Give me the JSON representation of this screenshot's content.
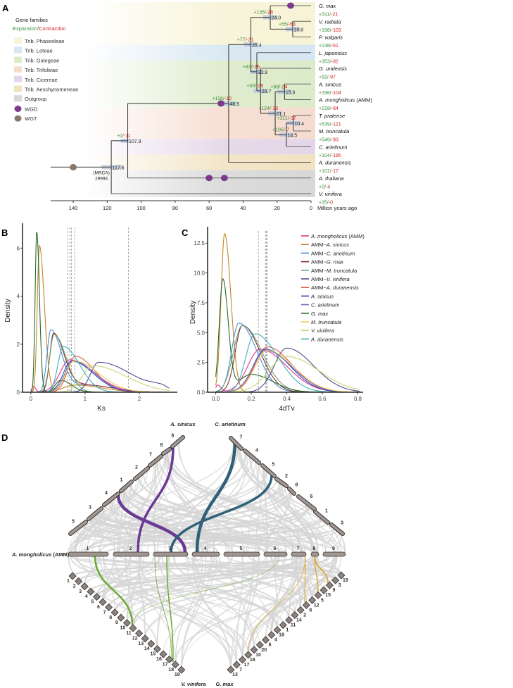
{
  "panel_labels": [
    "A",
    "B",
    "C",
    "D"
  ],
  "panelA": {
    "legend_title": "Gene families",
    "legend_expansion": "Expansion",
    "legend_sep": "/",
    "legend_contraction": "Contraction",
    "tribes": [
      {
        "label": "Trib. Phaseoleae",
        "color": "#f7f3d6",
        "tips": [
          0,
          2
        ]
      },
      {
        "label": "Trib. Loteae",
        "color": "#d6e6f2",
        "tips": [
          3,
          3
        ]
      },
      {
        "label": "Trib. Galegeae",
        "color": "#dcebc9",
        "tips": [
          4,
          6
        ]
      },
      {
        "label": "Trib. Trifolieae",
        "color": "#f6dccf",
        "tips": [
          7,
          8
        ]
      },
      {
        "label": "Trib. Cicereae",
        "color": "#e4d6e8",
        "tips": [
          9,
          9
        ]
      },
      {
        "label": "Trib. Aeschynomeneae",
        "color": "#f1e2c1",
        "tips": [
          10,
          10
        ]
      },
      {
        "label": "Outgroup",
        "color": "#d8d8d8",
        "tips": [
          11,
          12
        ]
      }
    ],
    "events": [
      {
        "label": "WGD",
        "color": "#7b3a8c"
      },
      {
        "label": "WGT",
        "color": "#8c776b"
      }
    ],
    "tips": [
      {
        "name": "G. max",
        "gain": "+311",
        "loss": "-21"
      },
      {
        "name": "V. radiata",
        "gain": "+158",
        "loss": "-103"
      },
      {
        "name": "P. vulgaris",
        "gain": "+138",
        "loss": "-61"
      },
      {
        "name": "L. japonicus",
        "gain": "+353",
        "loss": "-82"
      },
      {
        "name": "G. uralensis",
        "gain": "+92",
        "loss": "-97"
      },
      {
        "name": "A. sinicus",
        "gain": "+198",
        "loss": "-104"
      },
      {
        "name": "A. mongholicus",
        "suffix": " (AMM)",
        "gain": "+218",
        "loss": "-64"
      },
      {
        "name": "T. pratense",
        "gain": "+539",
        "loss": "-121"
      },
      {
        "name": "M. truncatula",
        "gain": "+546",
        "loss": "-93"
      },
      {
        "name": "C. arietinum",
        "gain": "+104",
        "loss": "-185"
      },
      {
        "name": "A. duranensis",
        "gain": "+101",
        "loss": "-17"
      },
      {
        "name": "A. thaliana",
        "gain": "+0",
        "loss": "-4"
      },
      {
        "name": "V. vinifera",
        "gain": "+35",
        "loss": "-0"
      }
    ],
    "nodes": [
      {
        "id": "n10.8",
        "age": 10.8,
        "label": "10.8",
        "children": [
          "t1",
          "t2"
        ],
        "gain": "+55",
        "loss": "-63"
      },
      {
        "id": "n24.0",
        "age": 24.0,
        "label": "24.0",
        "children": [
          "t0",
          "n10.8"
        ],
        "gain": "+135",
        "loss": "-28"
      },
      {
        "id": "n15.6",
        "age": 15.6,
        "label": "15.6",
        "children": [
          "t5",
          "t6"
        ],
        "gain": "+68",
        "loss": "-24"
      },
      {
        "id": "n10.4",
        "age": 10.4,
        "label": "10.4",
        "children": [
          "t7",
          "t8"
        ],
        "gain": "+311",
        "loss": "-37"
      },
      {
        "id": "n14.5",
        "age": 14.5,
        "label": "14.5",
        "children": [
          "n10.4",
          "t9"
        ],
        "gain": "+105",
        "loss": "-7"
      },
      {
        "id": "n21.1",
        "age": 21.1,
        "label": "21.1",
        "children": [
          "n15.6",
          "n14.5"
        ],
        "gain": "+124",
        "loss": "-13"
      },
      {
        "id": "n29.7",
        "age": 29.7,
        "label": "29.7",
        "children": [
          "t4",
          "n21.1"
        ],
        "gain": "+30",
        "loss": "-25"
      },
      {
        "id": "n31.9",
        "age": 31.9,
        "label": "31.9",
        "children": [
          "t3",
          "n29.7"
        ],
        "gain": "+43",
        "loss": "-26"
      },
      {
        "id": "n35.4",
        "age": 35.4,
        "label": "35.4",
        "children": [
          "n24.0",
          "n31.9"
        ],
        "gain": "+77",
        "loss": "-21"
      },
      {
        "id": "n48.5",
        "age": 48.5,
        "label": "48.5",
        "children": [
          "n35.4",
          "t10"
        ],
        "gain": "+116",
        "loss": "-10"
      },
      {
        "id": "n107.9",
        "age": 107.9,
        "label": "107.9",
        "children": [
          "n48.5",
          "t11"
        ],
        "gain": "+0",
        "loss": "-11"
      },
      {
        "id": "n117.6",
        "age": 117.6,
        "label": "117.6",
        "children": [
          "n107.9",
          "t12"
        ],
        "mrca": "(MRCA)",
        "mrca_count": "29994"
      }
    ],
    "wgd_marks": [
      {
        "age": 12,
        "tip": 0
      },
      {
        "age": 53,
        "node": "n48.5"
      },
      {
        "age": 60,
        "tip": 11
      },
      {
        "age": 51,
        "tip": 11
      }
    ],
    "wgt_marks": [
      {
        "age": 140,
        "node": "n117.6"
      }
    ],
    "axis": {
      "ticks": [
        140,
        120,
        100,
        80,
        60,
        40,
        20,
        0
      ],
      "label": "Million years ago",
      "max": 153
    }
  },
  "chart_data": [
    {
      "type": "line",
      "panel": "B",
      "xlabel": "Ks",
      "ylabel": "Density",
      "xlim": [
        -0.1,
        2.7
      ],
      "ylim": [
        0,
        6.8
      ],
      "xticks": [
        0,
        1,
        2
      ],
      "yticks": [
        0,
        2,
        4,
        6
      ],
      "vlines": [
        0.68,
        0.72,
        0.75,
        0.81,
        1.8
      ],
      "series_peaks_format": "[mode, height, left_width, right_width]"
    },
    {
      "type": "line",
      "panel": "C",
      "xlabel": "4dTv",
      "ylabel": "Density",
      "xlim": [
        -0.03,
        0.83
      ],
      "ylim": [
        0,
        13.4
      ],
      "xticks": [
        0.0,
        0.2,
        0.4,
        0.6,
        0.8
      ],
      "yticks": [
        0.0,
        2.5,
        5.0,
        7.5,
        10.0,
        12.5
      ],
      "vlines": [
        0.24,
        0.28,
        0.285,
        0.29
      ]
    }
  ],
  "series": [
    {
      "name": "A. mongholicus",
      "suffix": " (AMM)",
      "color": "#e0338c",
      "ks": [
        [
          0.05,
          0.25,
          0.03,
          0.04
        ],
        [
          0.72,
          1.35,
          0.18,
          0.45
        ]
      ],
      "tv": [
        [
          0.01,
          0.6,
          0.01,
          0.02
        ],
        [
          0.25,
          3.6,
          0.07,
          0.15
        ]
      ]
    },
    {
      "name": "A. sinicus",
      "prefix": "AMM−",
      "color": "#c8862a",
      "ks": [
        [
          0.16,
          6.1,
          0.04,
          0.09
        ],
        [
          0.8,
          0.3,
          0.2,
          0.5
        ]
      ],
      "tv": [
        [
          0.05,
          13.3,
          0.02,
          0.035
        ]
      ]
    },
    {
      "name": "C. arietinum",
      "prefix": "AMM−",
      "color": "#4a90d9",
      "ks": [
        [
          0.37,
          2.6,
          0.07,
          0.2
        ],
        [
          1.0,
          0.3,
          0.2,
          0.5
        ]
      ],
      "tv": [
        [
          0.13,
          5.8,
          0.04,
          0.1
        ]
      ]
    },
    {
      "name": "G. max",
      "prefix": "AMM−",
      "color": "#8b2a2a",
      "ks": [
        [
          0.42,
          2.45,
          0.07,
          0.2
        ],
        [
          1.0,
          0.3,
          0.2,
          0.5
        ]
      ],
      "tv": [
        [
          0.15,
          5.6,
          0.04,
          0.1
        ]
      ]
    },
    {
      "name": "M. truncatula",
      "prefix": "AMM−",
      "color": "#6fa276",
      "ks": [
        [
          0.43,
          2.4,
          0.08,
          0.22
        ]
      ],
      "tv": [
        [
          0.15,
          5.6,
          0.05,
          0.11
        ]
      ]
    },
    {
      "name": "V. vinifera",
      "prefix": "AMM−",
      "color": "#4b4b8c",
      "ks": [
        [
          1.25,
          1.25,
          0.15,
          0.6
        ],
        [
          2.4,
          0.15,
          0.2,
          0.1
        ]
      ],
      "tv": [
        [
          0.4,
          3.7,
          0.07,
          0.15
        ]
      ]
    },
    {
      "name": "A. duranensis",
      "prefix": "AMM−",
      "color": "#e0604a",
      "ks": [
        [
          0.82,
          1.5,
          0.14,
          0.35
        ]
      ],
      "tv": [
        [
          0.29,
          3.8,
          0.07,
          0.14
        ]
      ]
    },
    {
      "name": "A. sinicus",
      "color": "#2a4ab0",
      "ks": [
        [
          0.75,
          1.3,
          0.15,
          0.4
        ]
      ],
      "tv": [
        [
          0.28,
          3.6,
          0.07,
          0.14
        ]
      ]
    },
    {
      "name": "C. arietinum",
      "color": "#7a70c0",
      "ks": [
        [
          0.78,
          1.3,
          0.15,
          0.4
        ]
      ],
      "tv": [
        [
          0.28,
          3.5,
          0.07,
          0.15
        ]
      ]
    },
    {
      "name": "G. max",
      "color": "#2a6a2a",
      "ks": [
        [
          0.11,
          6.7,
          0.03,
          0.05
        ],
        [
          0.55,
          0.5,
          0.1,
          0.2
        ]
      ],
      "tv": [
        [
          0.04,
          9.4,
          0.02,
          0.03
        ],
        [
          0.2,
          1.5,
          0.07,
          0.12
        ]
      ]
    },
    {
      "name": "M. truncatula",
      "color": "#f0c860",
      "ks": [
        [
          0.8,
          1.3,
          0.15,
          0.45
        ]
      ],
      "tv": [
        [
          0.29,
          3.5,
          0.07,
          0.15
        ]
      ]
    },
    {
      "name": "V. vinifera",
      "color": "#c8d870",
      "ks": [
        [
          1.15,
          1.1,
          0.2,
          0.6
        ]
      ],
      "tv": [
        [
          0.4,
          3.0,
          0.1,
          0.18
        ]
      ]
    },
    {
      "name": "A. duranensis",
      "color": "#40b0b8",
      "ks": [
        [
          0.6,
          1.9,
          0.1,
          0.3
        ]
      ],
      "tv": [
        [
          0.22,
          4.9,
          0.05,
          0.13
        ]
      ]
    }
  ],
  "panelD": {
    "species": {
      "amm": "A. mongholicus",
      "amm_suffix": " (AMM)",
      "sinicus": "A. sinicus",
      "arietinum": "C. arietinum",
      "vinifera": "V. vinifera",
      "gmax": "G. max"
    },
    "amm_chromosomes": [
      "1",
      "2",
      "3",
      "4",
      "5",
      "6",
      "7",
      "8",
      "9"
    ],
    "sinicus_chromosomes": [
      "5",
      "3",
      "4",
      "1",
      "2",
      "7",
      "8",
      "6"
    ],
    "arietinum_chromosomes": [
      "7",
      "4",
      "5",
      "2",
      "8",
      "6",
      "1",
      "3"
    ],
    "vinifera_chromosomes": [
      "1",
      "2",
      "3",
      "4",
      "5",
      "6",
      "7",
      "8",
      "9",
      "10",
      "11",
      "12",
      "13",
      "14",
      "15",
      "16",
      "17",
      "18",
      "19"
    ],
    "gmax_chromosomes": [
      "13",
      "7",
      "17",
      "16",
      "10",
      "20",
      "6",
      "4",
      "18",
      "1",
      "11",
      "14",
      "2",
      "8",
      "12",
      "5",
      "15",
      "9",
      "3",
      "19"
    ],
    "colors": {
      "sinicus": "#6a3a96",
      "arietinum": "#2f6078",
      "vinifera": "#6aa832",
      "gmax": "#d8b04a",
      "links": "#d6d6d6",
      "chrom": "#a29690"
    }
  }
}
